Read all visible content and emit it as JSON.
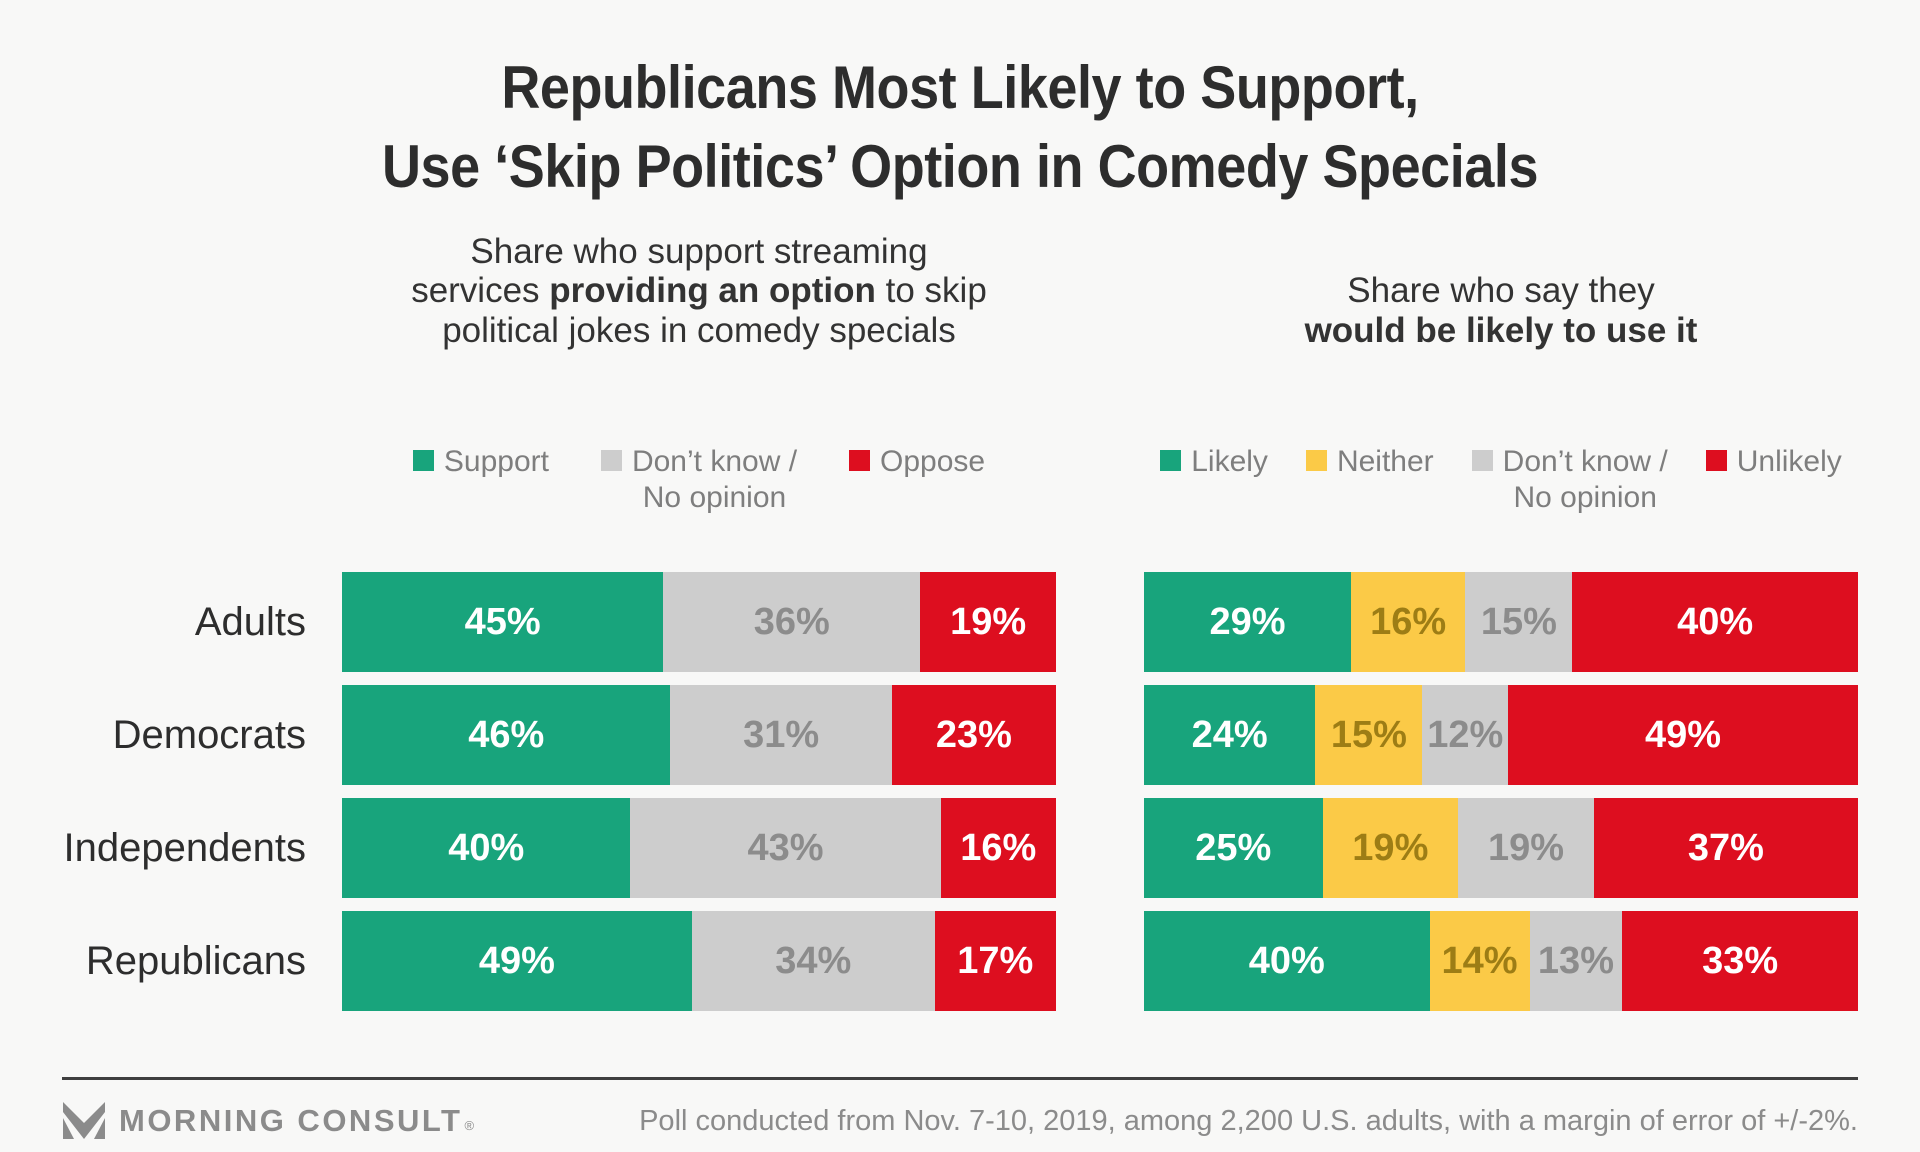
{
  "page": {
    "background": "#f8f8f7",
    "green": "#18a47c",
    "red": "#dd0e1f",
    "yellow": "#fbca47",
    "gray": "#cdcdcd"
  },
  "title": {
    "line1": "Republicans Most Likely to Support,",
    "line2": "Use ‘Skip Politics’ Option in Comedy Specials"
  },
  "subtitles": {
    "left": [
      [
        {
          "t": "Share who support streaming",
          "b": false
        }
      ],
      [
        {
          "t": "services ",
          "b": false
        },
        {
          "t": "providing an option",
          "b": true
        },
        {
          "t": " to skip",
          "b": false
        }
      ],
      [
        {
          "t": "political jokes in comedy specials",
          "b": false
        }
      ]
    ],
    "right": [
      [
        {
          "t": "Share who say they",
          "b": false
        }
      ],
      [
        {
          "t": "would be likely to use it",
          "b": true
        }
      ]
    ]
  },
  "legends": {
    "left": [
      {
        "icon": "support-swatch-icon",
        "color": "#18a47c",
        "lines": [
          "Support"
        ]
      },
      {
        "icon": "dont-know-swatch-icon",
        "color": "#cdcdcd",
        "lines": [
          "Don’t know /",
          "No opinion"
        ]
      },
      {
        "icon": "oppose-swatch-icon",
        "color": "#dd0e1f",
        "lines": [
          "Oppose"
        ]
      }
    ],
    "right": [
      {
        "icon": "likely-swatch-icon",
        "color": "#18a47c",
        "lines": [
          "Likely"
        ]
      },
      {
        "icon": "neither-swatch-icon",
        "color": "#fbca47",
        "lines": [
          "Neither"
        ]
      },
      {
        "icon": "dont-know-swatch-icon",
        "color": "#cdcdcd",
        "lines": [
          "Don’t know /",
          "No opinion"
        ]
      },
      {
        "icon": "unlikely-swatch-icon",
        "color": "#dd0e1f",
        "lines": [
          "Unlikely"
        ]
      }
    ]
  },
  "chart_data": [
    {
      "type": "bar",
      "stacked": true,
      "orientation": "horizontal",
      "value_suffix": "%",
      "title": "Share who support streaming services providing an option to skip political jokes in comedy specials",
      "categories": [
        "Adults",
        "Democrats",
        "Independents",
        "Republicans"
      ],
      "series": [
        {
          "name": "Support",
          "color": "#18a47c",
          "text_color": "#ffffff",
          "values": [
            45,
            46,
            40,
            49
          ]
        },
        {
          "name": "Don’t know / No opinion",
          "color": "#cdcdcd",
          "text_color": "#8c8c8c",
          "values": [
            36,
            31,
            43,
            34
          ]
        },
        {
          "name": "Oppose",
          "color": "#dd0e1f",
          "text_color": "#ffffff",
          "values": [
            19,
            23,
            16,
            17
          ]
        }
      ]
    },
    {
      "type": "bar",
      "stacked": true,
      "orientation": "horizontal",
      "value_suffix": "%",
      "title": "Share who say they would be likely to use it",
      "categories": [
        "Adults",
        "Democrats",
        "Independents",
        "Republicans"
      ],
      "series": [
        {
          "name": "Likely",
          "color": "#18a47c",
          "text_color": "#ffffff",
          "values": [
            29,
            24,
            25,
            40
          ]
        },
        {
          "name": "Neither",
          "color": "#fbca47",
          "text_color": "#9d7d15",
          "values": [
            16,
            15,
            19,
            14
          ]
        },
        {
          "name": "Don’t know / No opinion",
          "color": "#cdcdcd",
          "text_color": "#8c8c8c",
          "values": [
            15,
            12,
            19,
            13
          ]
        },
        {
          "name": "Unlikely",
          "color": "#dd0e1f",
          "text_color": "#ffffff",
          "values": [
            40,
            49,
            37,
            33
          ]
        }
      ]
    }
  ],
  "footer": {
    "brand": "MORNING CONSULT",
    "registered_mark": "®",
    "source": "Poll conducted from Nov. 7-10, 2019, among 2,200 U.S. adults, with a margin of error of +/-2%."
  }
}
